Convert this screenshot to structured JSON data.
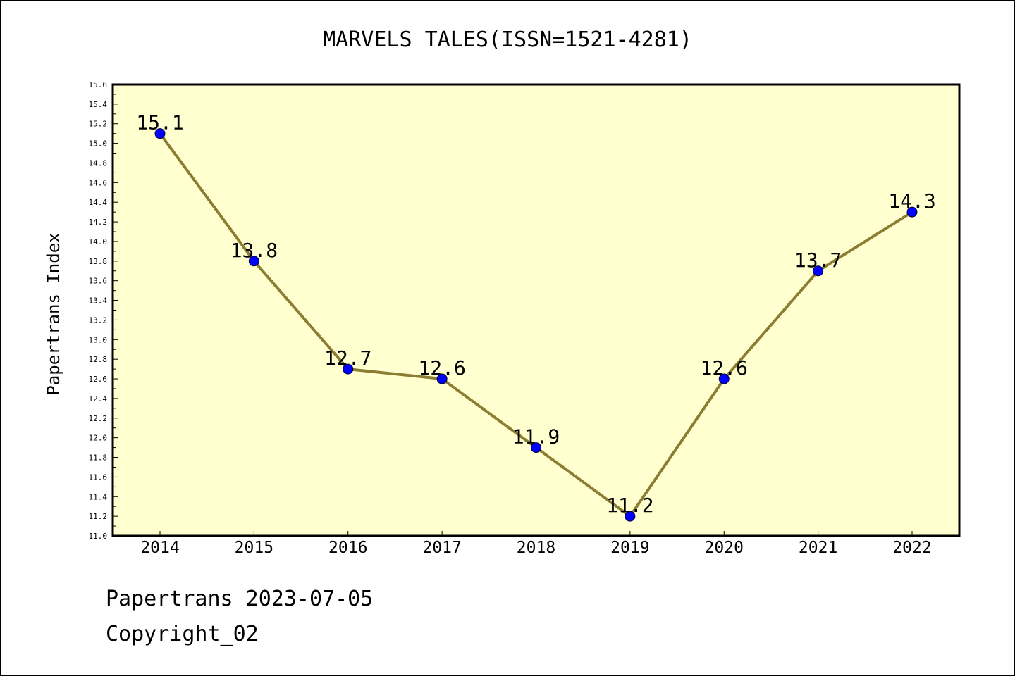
{
  "chart_data": {
    "type": "line",
    "title": "MARVELS TALES(ISSN=1521-4281)",
    "ylabel": "Papertrans Index",
    "xlabel": "",
    "categories": [
      "2014",
      "2015",
      "2016",
      "2017",
      "2018",
      "2019",
      "2020",
      "2021",
      "2022"
    ],
    "values": [
      15.1,
      13.8,
      12.7,
      12.6,
      11.9,
      11.2,
      12.6,
      13.7,
      14.3
    ],
    "data_labels": [
      "15.1",
      "13.8",
      "12.7",
      "12.6",
      "11.9",
      "11.2",
      "12.6",
      "13.7",
      "14.3"
    ],
    "ylim": [
      11.0,
      15.6
    ],
    "yticks": [
      "11.0",
      "11.2",
      "11.4",
      "11.6",
      "11.8",
      "12.0",
      "12.2",
      "12.4",
      "12.6",
      "12.8",
      "13.0",
      "13.2",
      "13.4",
      "13.6",
      "13.8",
      "14.0",
      "14.2",
      "14.4",
      "14.6",
      "14.8",
      "15.0",
      "15.2",
      "15.4",
      "15.6"
    ],
    "grid": false,
    "colors": {
      "plot_background": "#ffffd0",
      "line": "#8b7d32",
      "marker": "#0000ff"
    }
  },
  "footer": {
    "line1": "Papertrans 2023-07-05",
    "line2": "Copyright_02"
  }
}
